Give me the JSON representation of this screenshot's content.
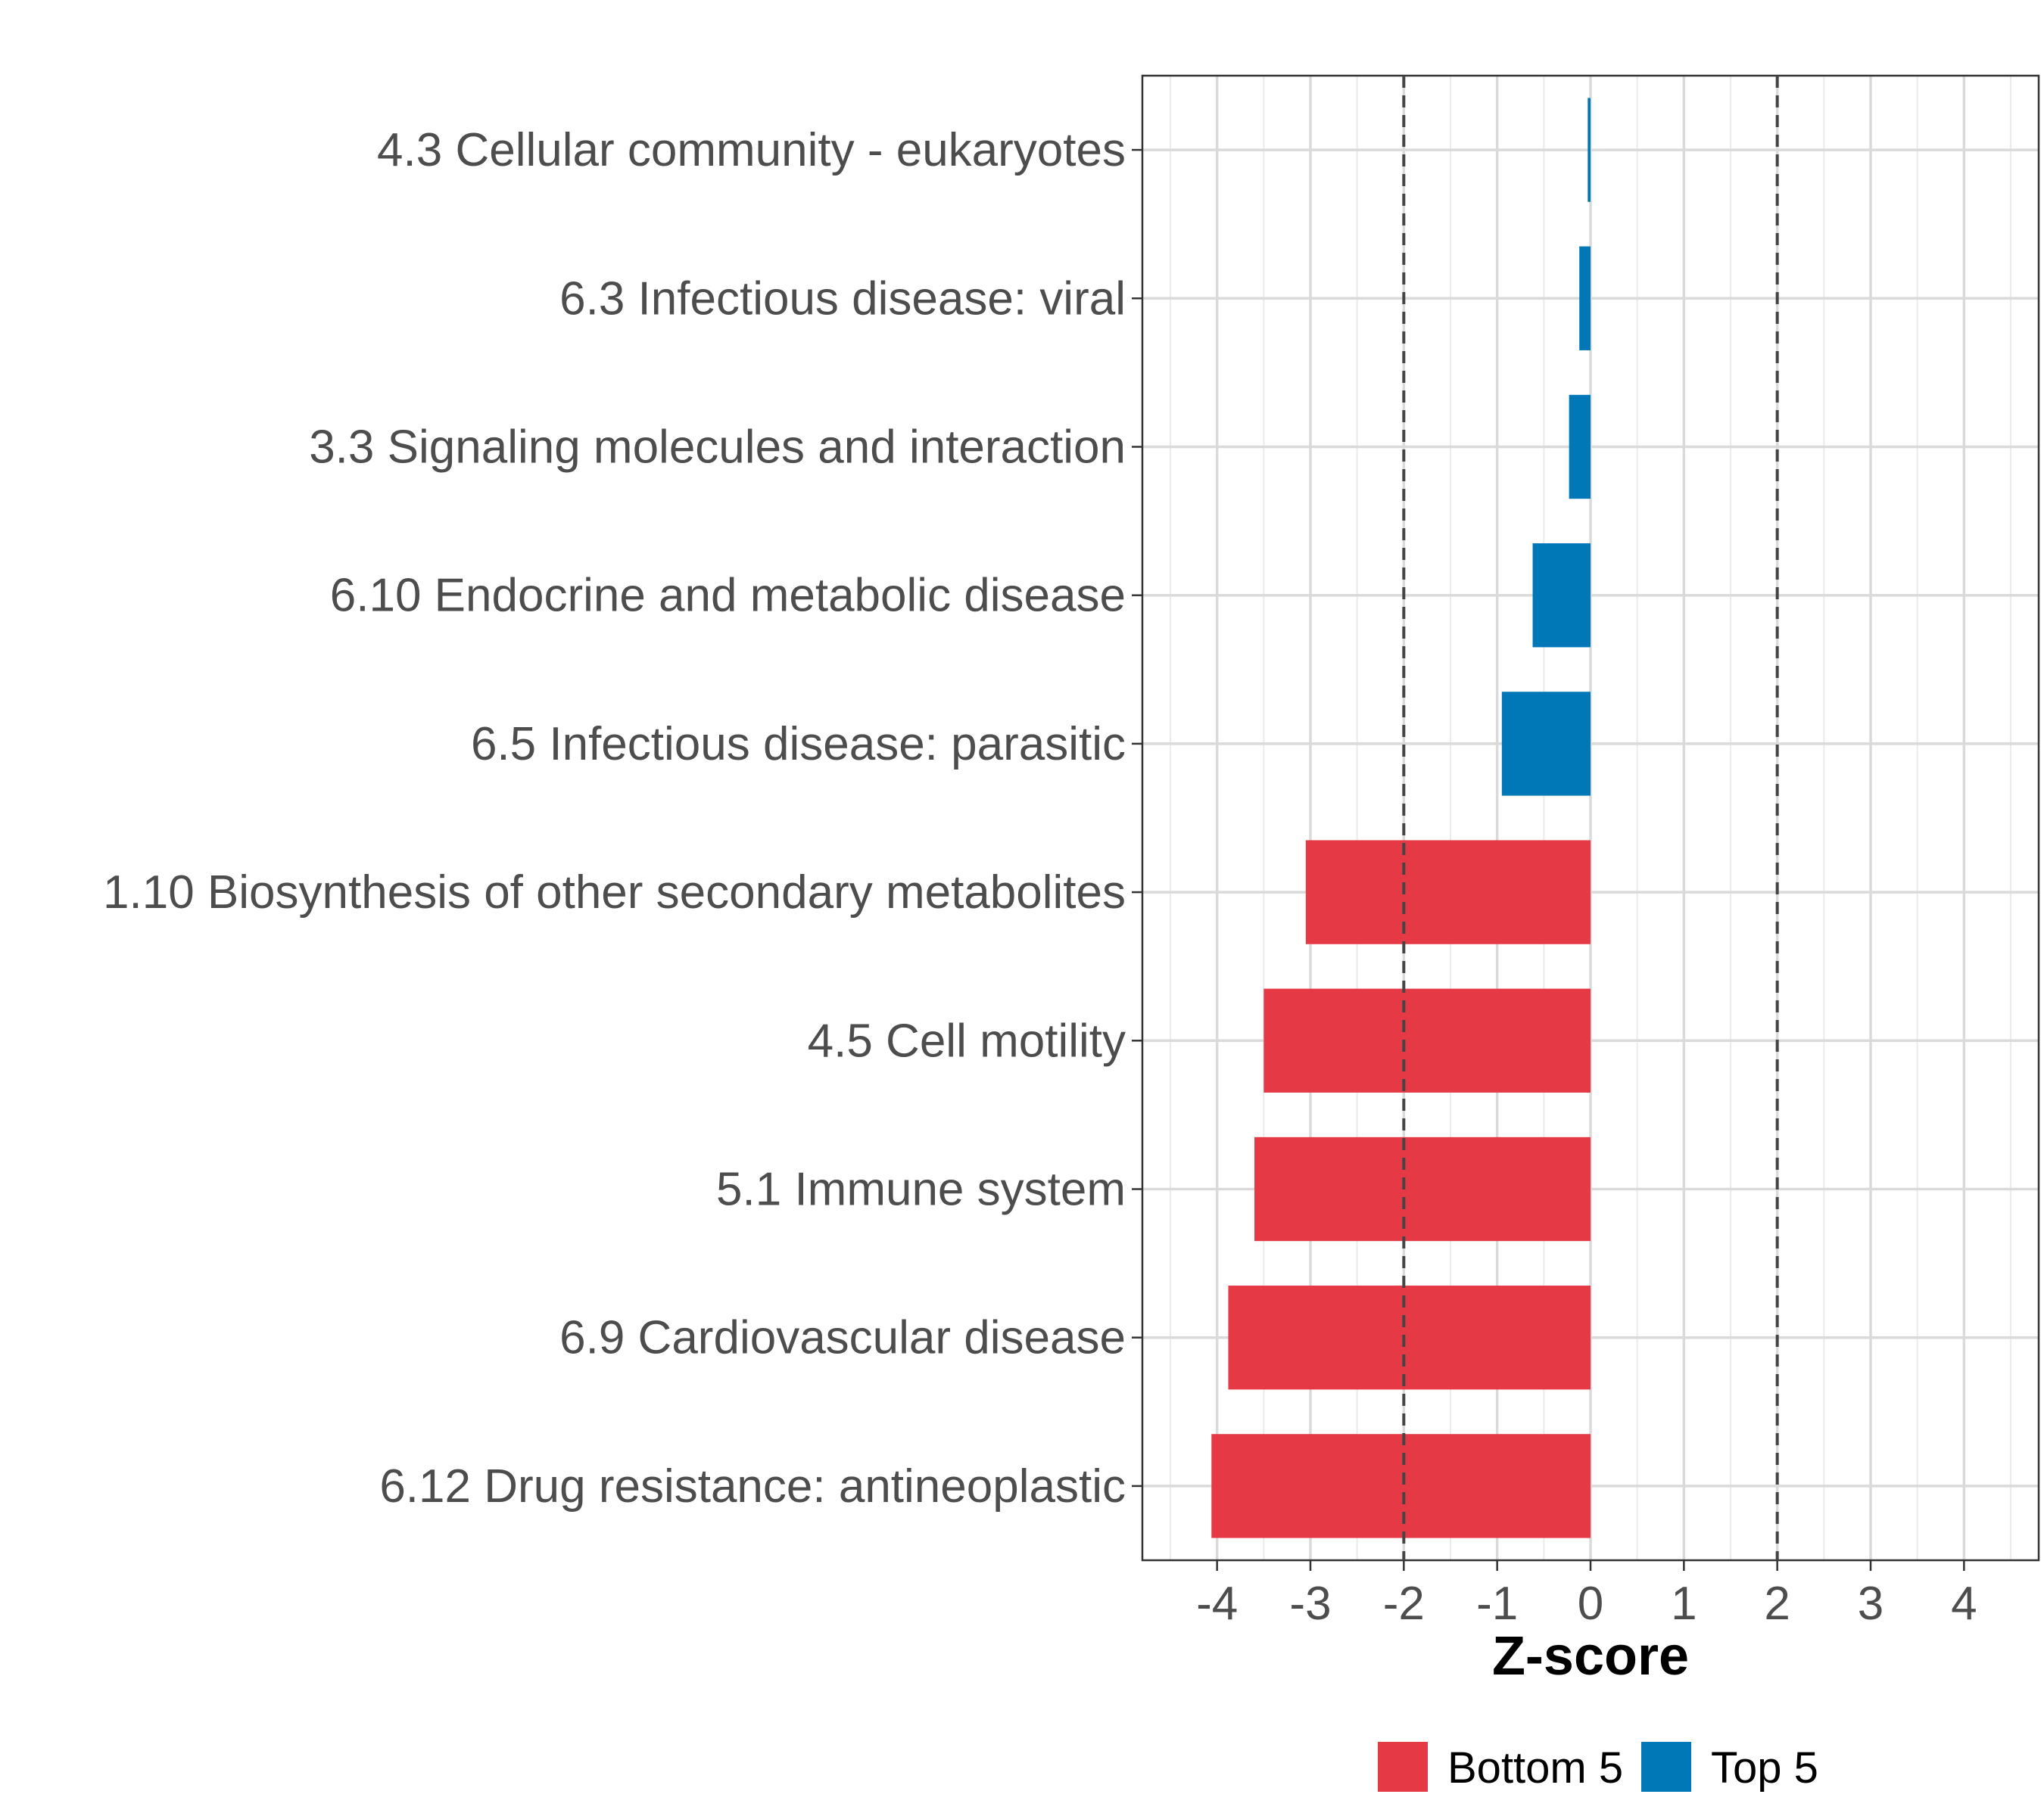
{
  "chart_data": {
    "type": "bar",
    "orientation": "horizontal",
    "categories": [
      "4.3 Cellular community - eukaryotes",
      "6.3 Infectious disease: viral",
      "3.3 Signaling molecules and interaction",
      "6.10 Endocrine and metabolic disease",
      "6.5 Infectious disease: parasitic",
      "1.10 Biosynthesis of other secondary metabolites",
      "4.5 Cell motility",
      "5.1 Immune system",
      "6.9 Cardiovascular disease",
      "6.12 Drug resistance: antineoplastic"
    ],
    "values": [
      -0.03,
      -0.12,
      -0.23,
      -0.62,
      -0.95,
      -3.05,
      -3.5,
      -3.6,
      -3.88,
      -4.06
    ],
    "groups": [
      "Top 5",
      "Top 5",
      "Top 5",
      "Top 5",
      "Top 5",
      "Bottom 5",
      "Bottom 5",
      "Bottom 5",
      "Bottom 5",
      "Bottom 5"
    ],
    "colors": {
      "Bottom 5": "#e63946",
      "Top 5": "#0077b6"
    },
    "xlabel": "Z-score",
    "ylabel": "",
    "xlim": [
      -4.8,
      4.8
    ],
    "xticks": [
      -4,
      -3,
      -2,
      -1,
      0,
      1,
      2,
      3,
      4
    ],
    "reference_lines": [
      -2,
      2
    ],
    "grid": true,
    "legend": {
      "position": "bottom",
      "entries": [
        {
          "label": "Bottom 5",
          "color": "#e63946"
        },
        {
          "label": "Top 5",
          "color": "#0077b6"
        }
      ]
    }
  }
}
